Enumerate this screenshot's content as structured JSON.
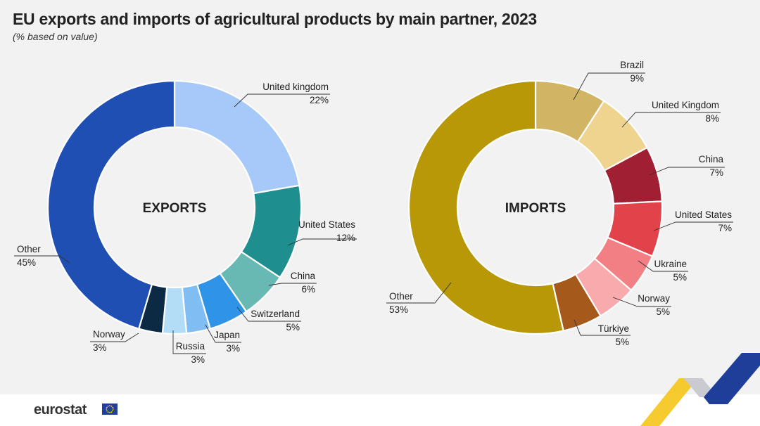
{
  "title": "EU exports and imports of agricultural products by main partner, 2023",
  "subtitle": "(% based on value)",
  "footer": {
    "brand": "eurostat"
  },
  "colors": {
    "exports": [
      "#a7c9f9",
      "#1e8e8e",
      "#68b8b4",
      "#2f93e8",
      "#7fbdf2",
      "#b3dcf7",
      "#0d2a45",
      "#1f4fb2"
    ],
    "imports": [
      "#d1b464",
      "#efd48f",
      "#a11f33",
      "#e2434b",
      "#f27f84",
      "#f8aaac",
      "#a5591b",
      "#b89807"
    ]
  },
  "chart_data": [
    {
      "type": "pie",
      "variant": "donut",
      "center_label": "EXPORTS",
      "slices": [
        {
          "label": "United kingdom",
          "value": 22,
          "display": "22%"
        },
        {
          "label": "United States",
          "value": 12,
          "display": "12%"
        },
        {
          "label": "China",
          "value": 6,
          "display": "6%"
        },
        {
          "label": "Switzerland",
          "value": 5,
          "display": "5%"
        },
        {
          "label": "Japan",
          "value": 3,
          "display": "3%"
        },
        {
          "label": "Russia",
          "value": 3,
          "display": "3%"
        },
        {
          "label": "Norway",
          "value": 3,
          "display": "3%"
        },
        {
          "label": "Other",
          "value": 45,
          "display": "45%"
        }
      ]
    },
    {
      "type": "pie",
      "variant": "donut",
      "center_label": "IMPORTS",
      "slices": [
        {
          "label": "Brazil",
          "value": 9,
          "display": "9%"
        },
        {
          "label": "United Kingdom",
          "value": 8,
          "display": "8%"
        },
        {
          "label": "China",
          "value": 7,
          "display": "7%"
        },
        {
          "label": "United States",
          "value": 7,
          "display": "7%"
        },
        {
          "label": "Ukraine",
          "value": 5,
          "display": "5%"
        },
        {
          "label": "Norway",
          "value": 5,
          "display": "5%"
        },
        {
          "label": "Türkiye",
          "value": 5,
          "display": "5%"
        },
        {
          "label": "Other",
          "value": 53,
          "display": "53%"
        }
      ]
    }
  ]
}
